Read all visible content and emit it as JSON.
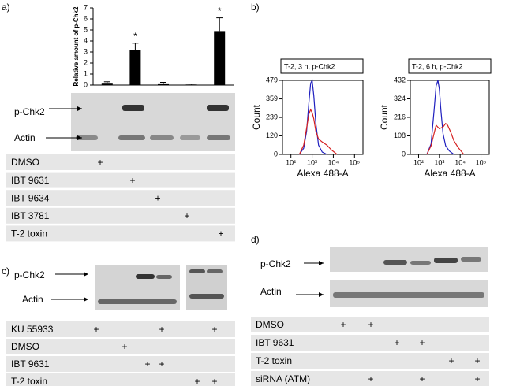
{
  "chart_data": [
    {
      "type": "bar",
      "y_label": "Relative amount of p-Chk2",
      "categories": [
        null,
        null,
        null,
        null,
        null
      ],
      "values": [
        0.2,
        3.2,
        0.15,
        0.05,
        4.9
      ],
      "errors": [
        0.1,
        0.6,
        0.1,
        0.05,
        1.2
      ],
      "value_annotations": [
        null,
        "*",
        null,
        null,
        "*"
      ],
      "color": "#000000",
      "ylim": [
        0,
        7
      ],
      "yticks": [
        0,
        1,
        2,
        3,
        4,
        5,
        6,
        7
      ]
    },
    {
      "type": "line",
      "title": "T-2, 3 h, p-Chk2",
      "x_label": "Alexa 488-A",
      "y_label": "Count",
      "xscale": "log",
      "xlim": [
        40,
        250000
      ],
      "xticks": [
        {
          "value": 100,
          "label": "10²"
        },
        {
          "value": 1000,
          "label": "10³"
        },
        {
          "value": 10000,
          "label": "10⁴"
        },
        {
          "value": 100000,
          "label": "10⁵"
        }
      ],
      "ylim": [
        0,
        479
      ],
      "yticks": [
        0,
        120,
        239,
        359,
        479
      ],
      "series": [
        {
          "color": "#1f1fbf",
          "x": [
            250,
            400,
            550,
            700,
            850,
            1000,
            1200,
            1500,
            2000,
            3000,
            5000
          ],
          "values": [
            0,
            40,
            150,
            330,
            460,
            479,
            380,
            200,
            60,
            15,
            0
          ]
        },
        {
          "color": "#d62020",
          "x": [
            250,
            400,
            550,
            700,
            850,
            1000,
            1200,
            1500,
            2000,
            3000,
            5000,
            8000,
            15000
          ],
          "values": [
            0,
            60,
            170,
            260,
            290,
            270,
            230,
            150,
            100,
            80,
            60,
            30,
            0
          ]
        }
      ]
    },
    {
      "type": "line",
      "title": "T-2, 6 h, p-Chk2",
      "x_label": "Alexa 488-A",
      "y_label": "Count",
      "xscale": "log",
      "xlim": [
        40,
        250000
      ],
      "xticks": [
        {
          "value": 100,
          "label": "10²"
        },
        {
          "value": 1000,
          "label": "10³"
        },
        {
          "value": 10000,
          "label": "10⁴"
        },
        {
          "value": 100000,
          "label": "10⁵"
        }
      ],
      "ylim": [
        0,
        432
      ],
      "yticks": [
        0,
        108,
        216,
        324,
        432
      ],
      "series": [
        {
          "color": "#1f1fbf",
          "x": [
            250,
            400,
            550,
            700,
            850,
            1000,
            1200,
            1500,
            2000,
            3000,
            5000
          ],
          "values": [
            0,
            60,
            250,
            400,
            432,
            380,
            250,
            120,
            50,
            20,
            0
          ]
        },
        {
          "color": "#d62020",
          "x": [
            250,
            400,
            550,
            700,
            1000,
            1500,
            2000,
            2500,
            3500,
            5000,
            8000,
            15000
          ],
          "values": [
            0,
            50,
            120,
            170,
            150,
            160,
            180,
            170,
            130,
            80,
            40,
            0
          ]
        }
      ]
    }
  ],
  "panels": {
    "a": "a)",
    "b": "b)",
    "c": "c)",
    "d": "d)"
  },
  "blot_labels": {
    "a": [
      "p-Chk2",
      "Actin"
    ],
    "c": [
      "p-Chk2",
      "Actin"
    ],
    "d": [
      "p-Chk2",
      "Actin"
    ]
  },
  "tables": {
    "a": [
      {
        "label": "DMSO",
        "cells": [
          "+",
          null,
          null,
          null,
          null
        ]
      },
      {
        "label": "IBT 9631",
        "cells": [
          null,
          "+",
          null,
          null,
          null
        ]
      },
      {
        "label": "IBT 9634",
        "cells": [
          null,
          null,
          "+",
          null,
          null
        ]
      },
      {
        "label": "IBT 3781",
        "cells": [
          null,
          null,
          null,
          "+",
          null
        ]
      },
      {
        "label": "T-2 toxin",
        "cells": [
          null,
          null,
          null,
          null,
          "+"
        ]
      }
    ],
    "c": [
      {
        "label": "KU 55933",
        "cells": [
          "+",
          null,
          null,
          "+",
          null,
          "+"
        ]
      },
      {
        "label": "DMSO",
        "cells": [
          null,
          "+",
          null,
          null,
          null,
          null
        ]
      },
      {
        "label": "IBT 9631",
        "cells": [
          null,
          null,
          "+",
          "+",
          null,
          null
        ]
      },
      {
        "label": "T-2 toxin",
        "cells": [
          null,
          null,
          null,
          null,
          "+",
          "+"
        ]
      }
    ],
    "d": [
      {
        "label": "DMSO",
        "cells": [
          "+",
          "+",
          null,
          null,
          null,
          null
        ]
      },
      {
        "label": "IBT 9631",
        "cells": [
          null,
          null,
          "+",
          "+",
          null,
          null
        ]
      },
      {
        "label": "T-2 toxin",
        "cells": [
          null,
          null,
          null,
          null,
          "+",
          "+"
        ]
      },
      {
        "label": "siRNA (ATM)",
        "cells": [
          null,
          "+",
          null,
          "+",
          null,
          "+"
        ]
      }
    ]
  }
}
